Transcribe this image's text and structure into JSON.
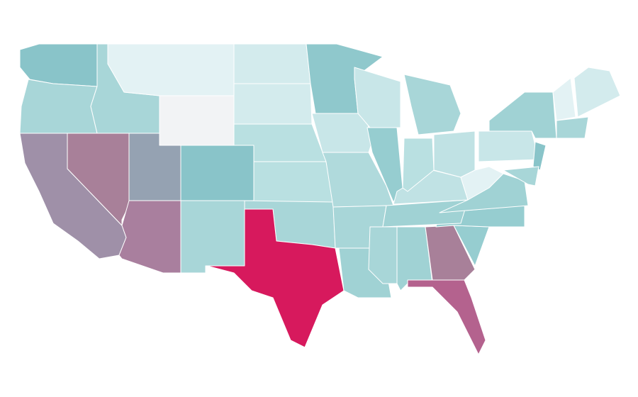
{
  "map": {
    "regions": [
      {
        "color": "#89c4c9"
      },
      {
        "color": "#a8d6d8"
      },
      {
        "color": "#9f90a8"
      },
      {
        "color": "#a88099"
      },
      {
        "color": "#a8d6d8"
      },
      {
        "color": "#e3f2f4"
      },
      {
        "color": "#f2f3f5"
      },
      {
        "color": "#95a2b2"
      },
      {
        "color": "#a97f9e"
      },
      {
        "color": "#89c4c9"
      },
      {
        "color": "#a8d6d8"
      },
      {
        "color": "#d3ebed"
      },
      {
        "color": "#d3ebed"
      },
      {
        "color": "#b9e0e1"
      },
      {
        "color": "#b9e0e1"
      },
      {
        "color": "#a8d6d8"
      },
      {
        "color": "#d7195d"
      },
      {
        "color": "#8fc8cc"
      },
      {
        "color": "#c8e6e8"
      },
      {
        "color": "#b0dadc"
      },
      {
        "color": "#a8d6d8"
      },
      {
        "color": "#a0d2d4"
      },
      {
        "color": "#c8e6e8"
      },
      {
        "color": "#96cdd0"
      },
      {
        "color": "#a8d6d8"
      },
      {
        "color": "#a0d2d4"
      },
      {
        "color": "#a88099"
      },
      {
        "color": "#b4628e"
      },
      {
        "color": "#96cdd0"
      },
      {
        "color": "#96cdd0"
      },
      {
        "color": "#a0d2d4"
      },
      {
        "color": "#c0e2e4"
      },
      {
        "color": "#b9e0e1"
      },
      {
        "color": "#c0e2e4"
      },
      {
        "color": "#a8d6d8"
      },
      {
        "color": "#e3f2f4"
      },
      {
        "color": "#a0d2d4"
      },
      {
        "color": "#c8e6e8"
      },
      {
        "color": "#a0d2d4"
      },
      {
        "color": "#89c4c9"
      },
      {
        "color": "#a8d6d8"
      },
      {
        "color": "#e3f2f4"
      },
      {
        "color": "#d3ebed"
      },
      {
        "color": "#a8d6d8"
      }
    ]
  }
}
